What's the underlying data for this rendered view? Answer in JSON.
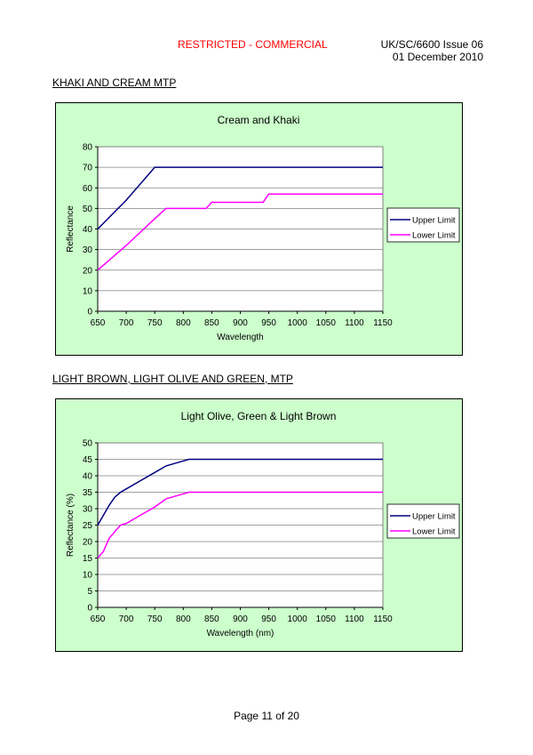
{
  "header": {
    "classification": "RESTRICTED -  COMMERCIAL",
    "doc_ref": "UK/SC/6600 Issue 06",
    "date": "01 December 2010"
  },
  "sections": [
    {
      "heading": "KHAKI AND CREAM MTP"
    },
    {
      "heading": "LIGHT BROWN, LIGHT OLIVE AND GREEN, MTP"
    }
  ],
  "footer": {
    "page": "Page 11 of 20"
  },
  "colors": {
    "upper": "#000080",
    "lower": "#ff00ff",
    "plot_bg": "#ffffff",
    "frame_bg": "#ccffcc",
    "grid": "#808080"
  },
  "chart_data": [
    {
      "type": "line",
      "title": "Cream and Khaki",
      "xlabel": "Wavelength",
      "ylabel": "Reflectance",
      "xlim": [
        650,
        1150
      ],
      "ylim": [
        0,
        80
      ],
      "xticks": [
        650,
        700,
        750,
        800,
        850,
        900,
        950,
        1000,
        1050,
        1100,
        1150
      ],
      "yticks": [
        0,
        10,
        20,
        30,
        40,
        50,
        60,
        70,
        80
      ],
      "grid": true,
      "legend_position": "right",
      "series": [
        {
          "name": "Upper Limit",
          "color": "#000080",
          "x": [
            650,
            700,
            750,
            760,
            1150
          ],
          "y": [
            40,
            54,
            70,
            70,
            70
          ]
        },
        {
          "name": "Lower Limit",
          "color": "#ff00ff",
          "x": [
            650,
            700,
            750,
            770,
            840,
            850,
            940,
            950,
            1150
          ],
          "y": [
            20,
            32,
            45,
            50,
            50,
            53,
            53,
            57,
            57
          ]
        }
      ]
    },
    {
      "type": "line",
      "title": "Light Olive, Green & Light Brown",
      "xlabel": "Wavelength (nm)",
      "ylabel": "Reflectance (%)",
      "xlim": [
        650,
        1150
      ],
      "ylim": [
        0,
        50
      ],
      "xticks": [
        650,
        700,
        750,
        800,
        850,
        900,
        950,
        1000,
        1050,
        1100,
        1150
      ],
      "yticks": [
        0,
        5,
        10,
        15,
        20,
        25,
        30,
        35,
        40,
        45,
        50
      ],
      "grid": true,
      "legend_position": "right",
      "series": [
        {
          "name": "Upper Limit",
          "color": "#000080",
          "x": [
            650,
            660,
            670,
            680,
            690,
            700,
            720,
            750,
            770,
            790,
            810,
            1150
          ],
          "y": [
            25,
            28,
            31,
            33.5,
            35,
            36,
            38,
            41,
            43,
            44,
            45,
            45
          ]
        },
        {
          "name": "Lower Limit",
          "color": "#ff00ff",
          "x": [
            650,
            660,
            670,
            680,
            690,
            700,
            720,
            750,
            770,
            790,
            810,
            1150
          ],
          "y": [
            15,
            17,
            21,
            23,
            25,
            25.5,
            27.5,
            30.5,
            33,
            34,
            35,
            35
          ]
        }
      ]
    }
  ]
}
